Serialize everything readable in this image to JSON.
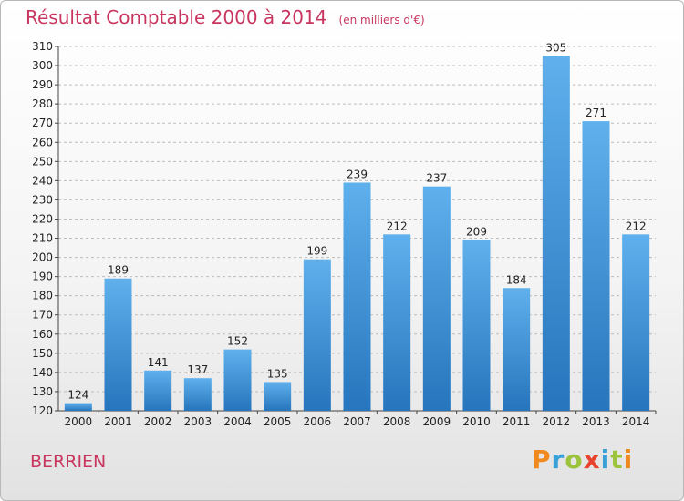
{
  "chart_data": {
    "type": "bar",
    "title": "Résultat Comptable 2000 à 2014",
    "subtitle": "(en milliers d'€)",
    "categories": [
      "2000",
      "2001",
      "2002",
      "2003",
      "2004",
      "2005",
      "2006",
      "2007",
      "2008",
      "2009",
      "2010",
      "2011",
      "2012",
      "2013",
      "2014"
    ],
    "values": [
      124,
      189,
      141,
      137,
      152,
      135,
      199,
      239,
      212,
      237,
      209,
      184,
      305,
      271,
      212
    ],
    "ylim": [
      120,
      310
    ],
    "yticks": [
      120,
      130,
      140,
      150,
      160,
      170,
      180,
      190,
      200,
      210,
      220,
      230,
      240,
      250,
      260,
      270,
      280,
      290,
      300,
      310
    ],
    "grid": true,
    "bar_color": "#3a8fd8"
  },
  "footer": {
    "place_name": "BERRIEN",
    "logo": {
      "p": "P",
      "r": "r",
      "o": "o",
      "x": "x",
      "i": "i",
      "t": "t",
      "i2": "i"
    }
  }
}
